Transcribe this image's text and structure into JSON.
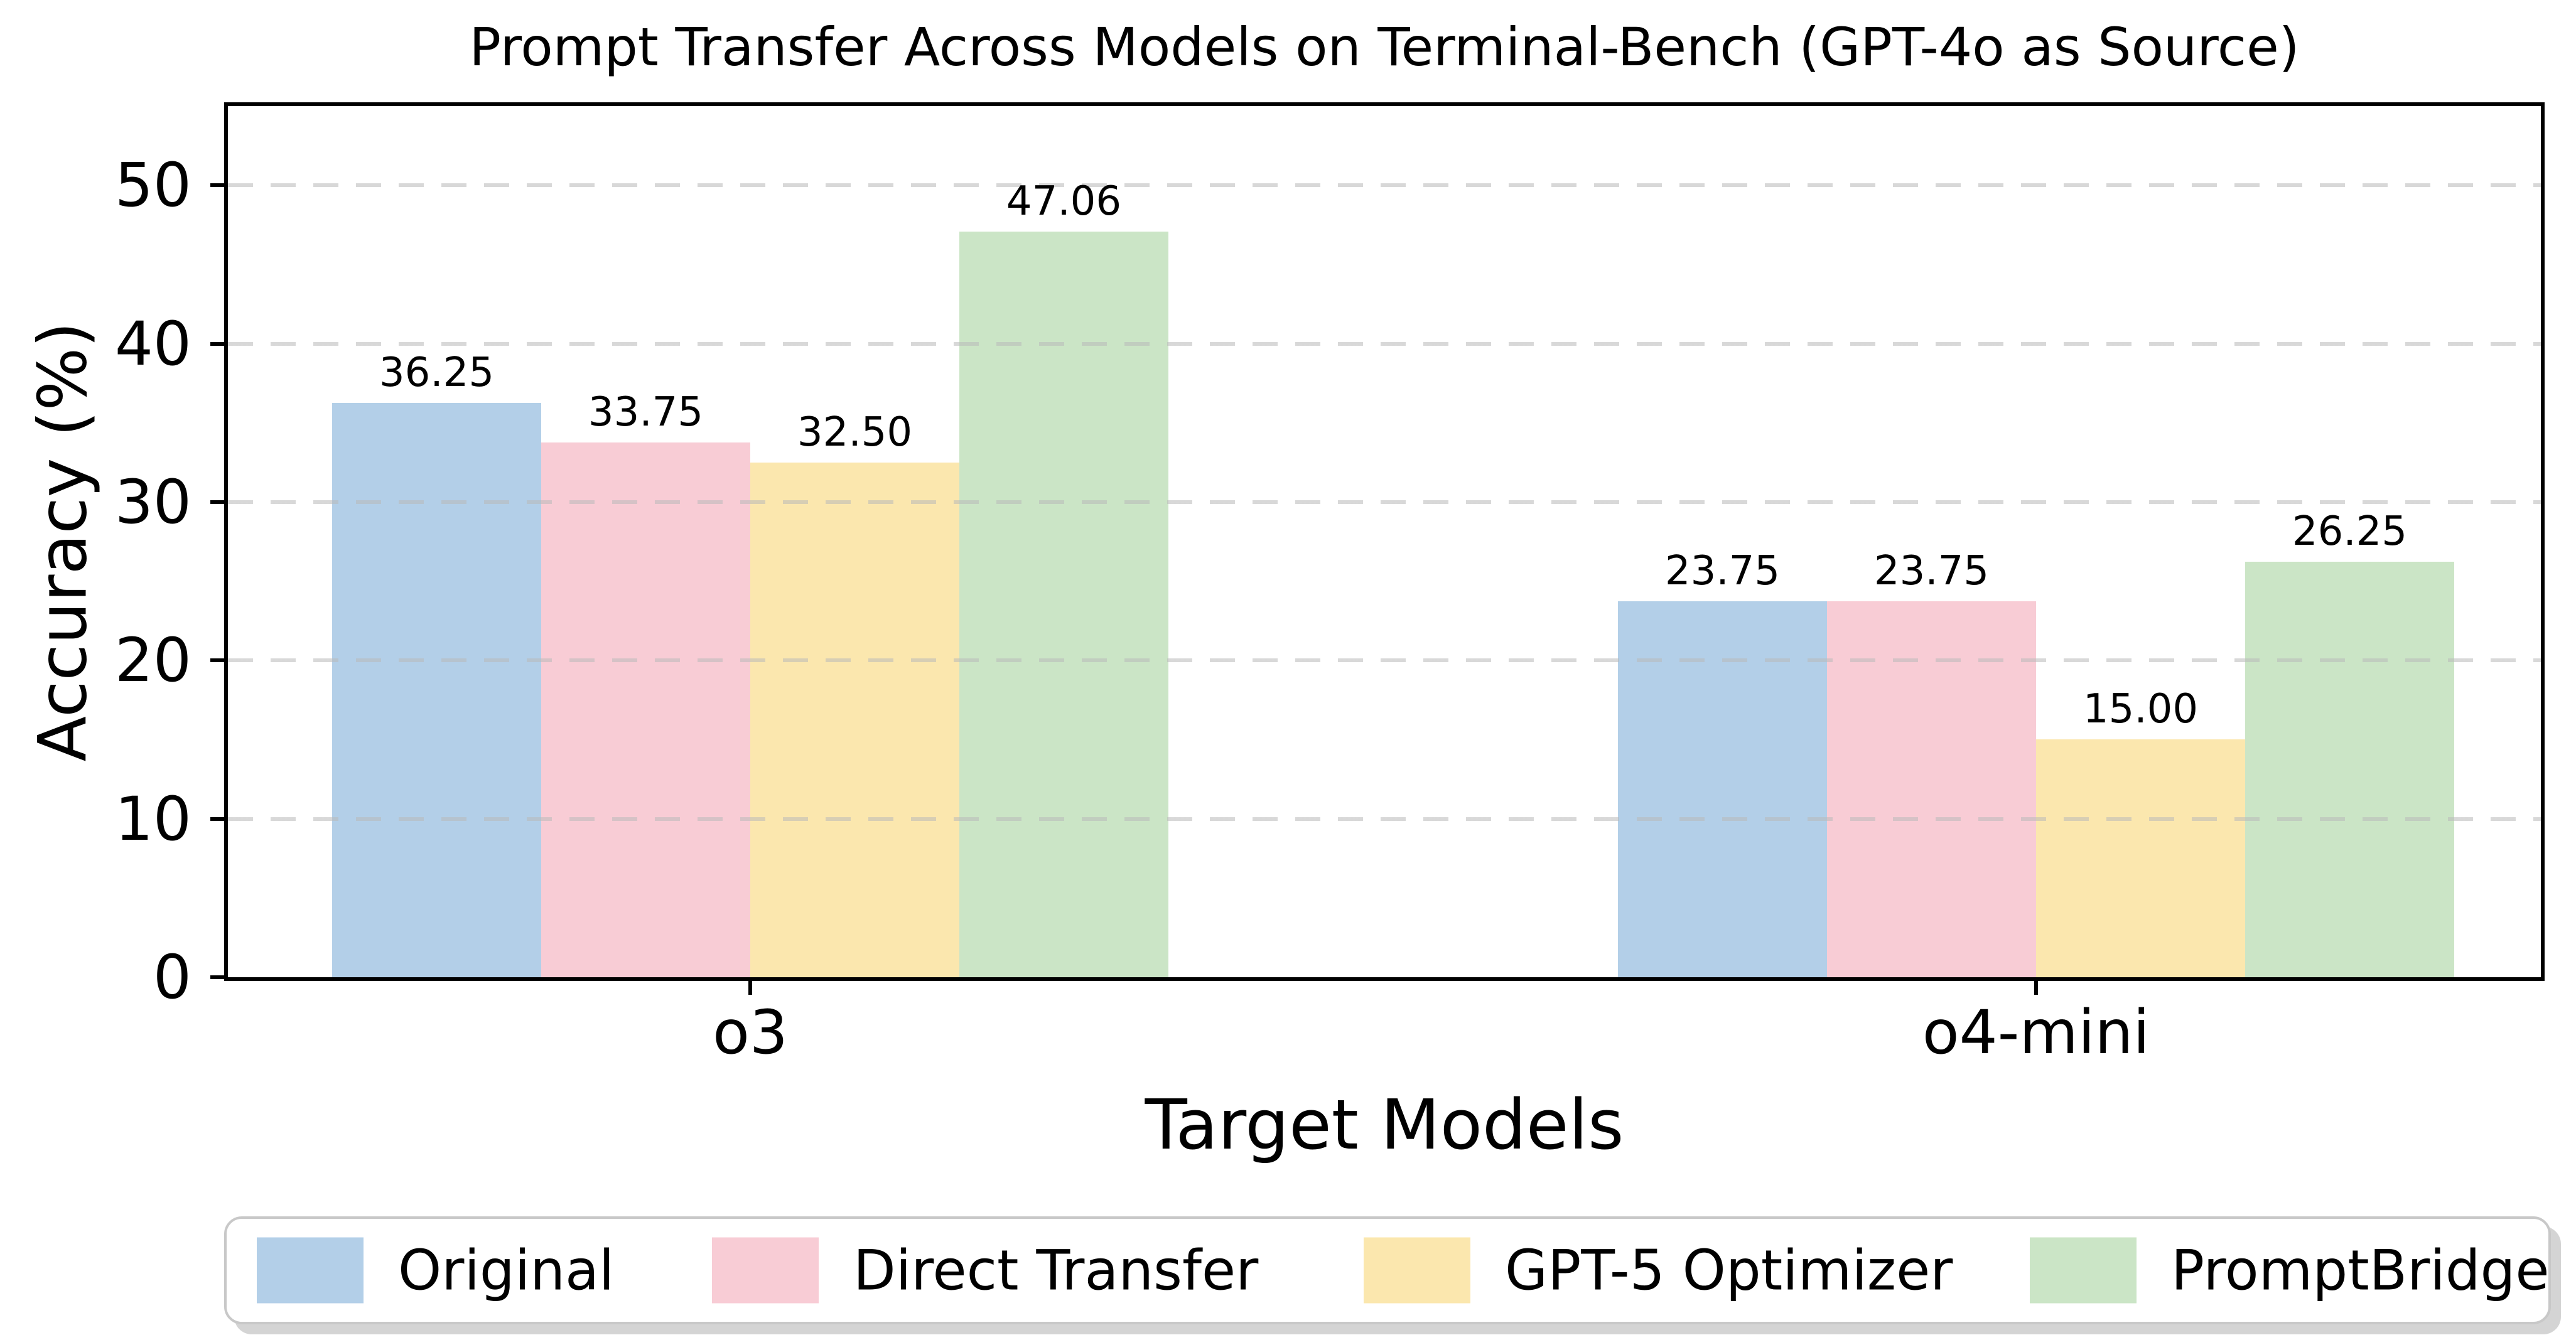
{
  "title": "Prompt Transfer Across Models on Terminal-Bench (GPT-4o as Source)",
  "chart_data": {
    "type": "bar",
    "title": "Prompt Transfer Across Models on Terminal-Bench (GPT-4o as Source)",
    "xlabel": "Target Models",
    "ylabel": "Accuracy (%)",
    "categories": [
      "o3",
      "o4-mini"
    ],
    "series": [
      {
        "name": "Original",
        "color": "#b3cfe8",
        "values": [
          36.25,
          23.75
        ]
      },
      {
        "name": "Direct Transfer",
        "color": "#f8ccd5",
        "values": [
          33.75,
          23.75
        ]
      },
      {
        "name": "GPT-5 Optimizer",
        "color": "#fbe7ae",
        "values": [
          32.5,
          15.0
        ]
      },
      {
        "name": "PromptBridge",
        "color": "#cbe5c6",
        "values": [
          47.06,
          26.25
        ]
      }
    ],
    "value_labels": [
      [
        "36.25",
        "33.75",
        "32.50",
        "47.06"
      ],
      [
        "23.75",
        "23.75",
        "15.00",
        "26.25"
      ]
    ],
    "yticks": [
      0,
      10,
      20,
      30,
      40,
      50
    ],
    "ylim": [
      0,
      55
    ],
    "grid": "horizontal-dashed",
    "legend_position": "bottom",
    "legend_entries": [
      "Original",
      "Direct Transfer",
      "GPT-5 Optimizer",
      "PromptBridge"
    ]
  }
}
